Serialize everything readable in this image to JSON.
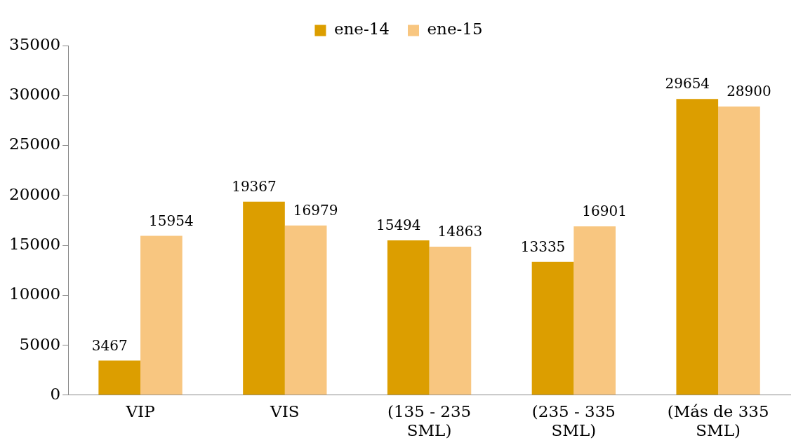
{
  "chart_data": {
    "type": "bar",
    "categories": [
      "VIP",
      "VIS",
      "(135 - 235 SML)",
      "(235 - 335 SML)",
      "(Más de 335 SML)"
    ],
    "series": [
      {
        "name": "ene-14",
        "color": "#dc9e00",
        "values": [
          3467,
          19367,
          15494,
          13335,
          29654
        ]
      },
      {
        "name": "ene-15",
        "color": "#f8c680",
        "values": [
          15954,
          16979,
          14863,
          16901,
          28900
        ]
      }
    ],
    "ylim": [
      0,
      35000
    ],
    "yticks": [
      0,
      5000,
      10000,
      15000,
      20000,
      25000,
      30000,
      35000
    ],
    "grid": false,
    "legend": "top",
    "data_labels": true
  }
}
